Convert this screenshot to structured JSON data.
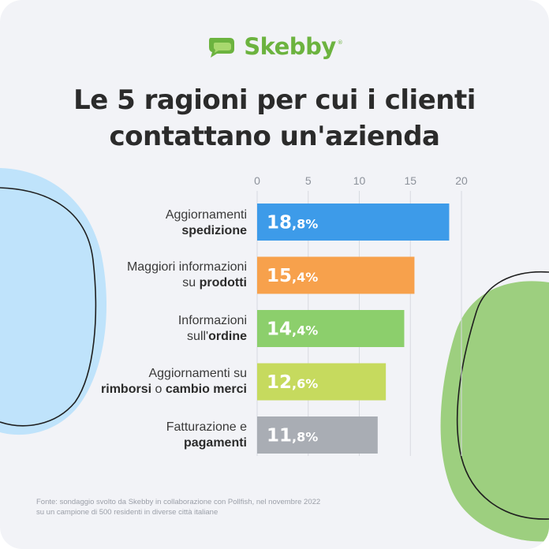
{
  "brand": {
    "name": "Skebby",
    "registered": "®",
    "color": "#6cb33f"
  },
  "title": {
    "line1": "Le 5 ragioni per cui i clienti",
    "line2": "contattano un'azienda"
  },
  "chart_data": {
    "type": "bar",
    "orientation": "horizontal",
    "title": "Le 5 ragioni per cui i clienti contattano un'azienda",
    "categories": [
      "Aggiornamenti spedizione",
      "Maggiori informazioni su prodotti",
      "Informazioni sull'ordine",
      "Aggiornamenti su rimborsi o cambio merci",
      "Fatturazione e pagamenti"
    ],
    "category_parts": [
      {
        "l1": "Aggiornamenti",
        "l1b": "",
        "l2": "",
        "l2b": "spedizione",
        "l2c": "",
        "l2d": ""
      },
      {
        "l1": "Maggiori informazioni",
        "l1b": "",
        "l2": "su ",
        "l2b": "prodotti",
        "l2c": "",
        "l2d": ""
      },
      {
        "l1": "Informazioni",
        "l1b": "",
        "l2": "sull'",
        "l2b": "ordine",
        "l2c": "",
        "l2d": ""
      },
      {
        "l1": "Aggiornamenti su",
        "l1b": "",
        "l2": "",
        "l2b": "rimborsi",
        "l2c": " o ",
        "l2d": "cambio merci"
      },
      {
        "l1": "Fatturazione e",
        "l1b": "",
        "l2": "",
        "l2b": "pagamenti",
        "l2c": "",
        "l2d": ""
      }
    ],
    "values": [
      18.8,
      15.4,
      14.4,
      12.6,
      11.8
    ],
    "value_labels": [
      {
        "int": "18",
        "dec": ",8%"
      },
      {
        "int": "15",
        "dec": ",4%"
      },
      {
        "int": "14",
        "dec": ",4%"
      },
      {
        "int": "12",
        "dec": ",6%"
      },
      {
        "int": "11",
        "dec": ",8%"
      }
    ],
    "colors": [
      "#3d9be9",
      "#f7a14c",
      "#8ccf6c",
      "#c6da5e",
      "#a9adb4"
    ],
    "xticks": [
      0,
      5,
      10,
      15,
      20
    ],
    "xlim": [
      0,
      20
    ],
    "grid": true,
    "xlabel": "",
    "ylabel": ""
  },
  "source": {
    "line1": "Fonte: sondaggio svolto da Skebby in collaborazione con Pollfish, nel novembre 2022",
    "line2": "su un campione di 500 residenti in diverse città italiane"
  },
  "decor": {
    "left_blob": "#bfe3fb",
    "right_blob": "#9dcf7f",
    "outline": "#1f1f1f"
  }
}
